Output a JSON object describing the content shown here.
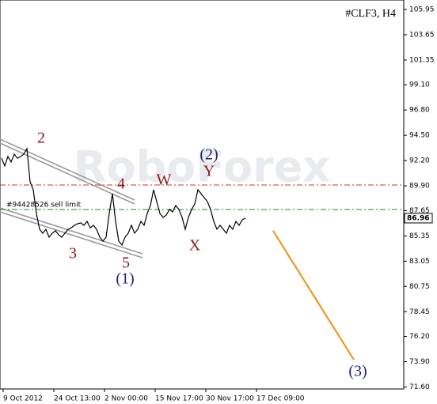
{
  "chart_data": {
    "type": "line",
    "title": "#CLF3, H4",
    "watermark": "RoboForex",
    "values": [
      92.42,
      91.71,
      92.57,
      92.07,
      92.78,
      92.42,
      92.57,
      92.78,
      93.29,
      90.27,
      89.55,
      87.39,
      85.95,
      85.59,
      85.95,
      85.23,
      85.59,
      85.81,
      85.45,
      85.23,
      85.59,
      85.95,
      86.09,
      86.31,
      86.45,
      86.53,
      86.31,
      86.67,
      86.09,
      86.31,
      85.95,
      85.23,
      84.87,
      85.23,
      87.39,
      89.19,
      86.67,
      84.87,
      84.51,
      85.23,
      85.59,
      86.31,
      85.59,
      85.95,
      86.67,
      86.31,
      87.39,
      88.11,
      89.55,
      88.47,
      87.39,
      87.03,
      87.24,
      87.75,
      87.53,
      88.11,
      87.75,
      87.03,
      85.95,
      87.03,
      87.75,
      88.25,
      89.55,
      89.19,
      88.83,
      88.47,
      87.75,
      86.67,
      85.95,
      86.31,
      85.95,
      85.59,
      86.31,
      85.95,
      86.67,
      86.31,
      86.81,
      86.96
    ],
    "color": "#000000",
    "current_price": 86.96,
    "ylim": [
      71.42,
      106.81
    ],
    "yticks": [
      105.95,
      103.65,
      101.35,
      {
        "value": 99.1,
        "label": "99.10"
      },
      {
        "value": 96.8,
        "label": "96.80"
      },
      {
        "value": 94.5,
        "label": "94.50"
      },
      {
        "value": 92.2,
        "label": "92.20"
      },
      {
        "value": 89.9,
        "label": "89.90"
      },
      87.65,
      85.35,
      83.05,
      80.75,
      78.45,
      {
        "value": 76.2,
        "label": "76.20"
      },
      {
        "value": 73.9,
        "label": "73.90"
      },
      {
        "value": 71.6,
        "label": "71.60"
      }
    ],
    "xlim": [
      -0.5,
      127
    ],
    "xticks": [
      {
        "value": 0,
        "label": "9 Oct 2012"
      },
      {
        "value": 16,
        "label": "24 Oct 13:00"
      },
      {
        "value": 32,
        "label": "2 Nov 00:00"
      },
      {
        "value": 48,
        "label": "15 Nov 17:00"
      },
      {
        "value": 64,
        "label": "30 Nov 17:00"
      },
      {
        "value": 80,
        "label": "17 Dec 09:00"
      }
    ],
    "levels": [
      {
        "value": 89.98,
        "color": "#cc3322"
      },
      {
        "value": 87.75,
        "color": "#228833",
        "label": "#94428526 sell limit"
      }
    ],
    "annotations": [
      {
        "text": "2",
        "color": "#8b1a1a"
      },
      {
        "text": "3",
        "color": "#8b1a1a"
      },
      {
        "text": "4",
        "color": "#8b1a1a"
      },
      {
        "text": "5",
        "color": "#8b1a1a"
      },
      {
        "text": "(1)",
        "color": "#1f2370"
      },
      {
        "text": "W",
        "color": "#8b1a1a"
      },
      {
        "text": "X",
        "color": "#8b1a1a"
      },
      {
        "text": "Y",
        "color": "#8b1a1a"
      },
      {
        "text": "(2)",
        "color": "#1f2370"
      },
      {
        "text": "(3)",
        "color": "#1f2370"
      }
    ]
  }
}
